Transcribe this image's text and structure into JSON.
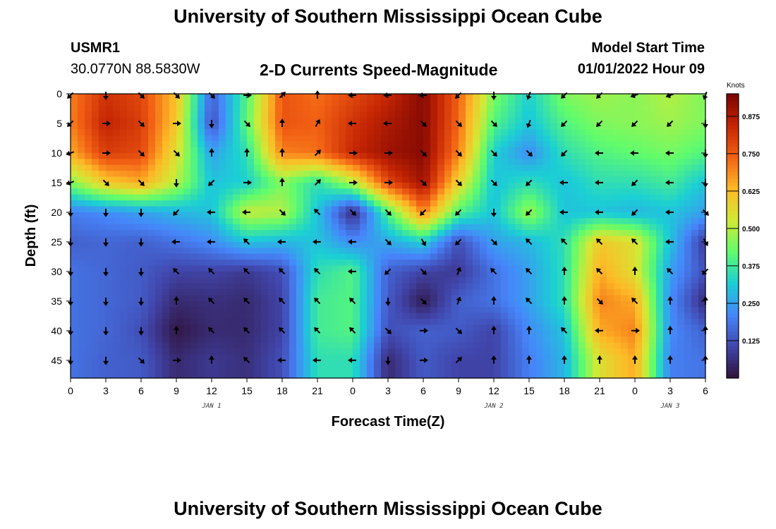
{
  "header": {
    "title": "University of Southern Mississippi Ocean Cube",
    "station_id": "USMR1",
    "coordinates": "30.0770N  88.5830W",
    "chart_title": "2-D Currents Speed-Magnitude",
    "model_start_label": "Model Start Time",
    "model_start_value": "01/01/2022 Hour 09"
  },
  "footer": {
    "title": "University of Southern Mississippi Ocean Cube"
  },
  "chart_data": {
    "type": "heatmap",
    "title": "2-D Currents Speed-Magnitude",
    "xlabel": "Forecast Time(Z)",
    "ylabel": "Depth (ft)",
    "x_tick_labels": [
      "0",
      "3",
      "6",
      "9",
      "12",
      "15",
      "18",
      "21",
      "0",
      "3",
      "6",
      "9",
      "12",
      "15",
      "18",
      "21",
      "0",
      "3",
      "6"
    ],
    "date_labels": [
      {
        "label": "JAN 1",
        "tick_index": 4
      },
      {
        "label": "JAN 2",
        "tick_index": 12
      },
      {
        "label": "JAN 3",
        "tick_index": 17
      }
    ],
    "y_ticks": [
      0,
      5,
      10,
      15,
      20,
      25,
      30,
      35,
      40,
      45
    ],
    "ylim": [
      48,
      0
    ],
    "colorbar": {
      "title": "Knots",
      "range": [
        0,
        0.95
      ],
      "tick_values": [
        0.125,
        0.25,
        0.375,
        0.5,
        0.625,
        0.75,
        0.875
      ],
      "tick_labels": [
        "0.125",
        "0.250",
        "0.375",
        "0.500",
        "0.625",
        "0.750",
        "0.875"
      ],
      "colormap": [
        "#30123b",
        "#4146ac",
        "#4686fb",
        "#1bcfd4",
        "#61fc6c",
        "#d2e935",
        "#feb927",
        "#f26014",
        "#c42503",
        "#7a0403"
      ]
    },
    "speed_grid": {
      "times": [
        0,
        3,
        6,
        9,
        12,
        15,
        18,
        21,
        24,
        27,
        30,
        33,
        36,
        39,
        42,
        45,
        48,
        51,
        54
      ],
      "depths": [
        0,
        5,
        10,
        15,
        20,
        25,
        30,
        35,
        40,
        45
      ],
      "values": [
        [
          0.7,
          0.82,
          0.78,
          0.62,
          0.15,
          0.4,
          0.76,
          0.72,
          0.78,
          0.84,
          0.93,
          0.74,
          0.45,
          0.32,
          0.45,
          0.48,
          0.46,
          0.5,
          0.45
        ],
        [
          0.7,
          0.85,
          0.8,
          0.6,
          0.12,
          0.42,
          0.76,
          0.74,
          0.82,
          0.88,
          0.93,
          0.73,
          0.4,
          0.3,
          0.4,
          0.45,
          0.46,
          0.48,
          0.45
        ],
        [
          0.65,
          0.8,
          0.78,
          0.55,
          0.25,
          0.35,
          0.7,
          0.72,
          0.84,
          0.9,
          0.93,
          0.7,
          0.32,
          0.22,
          0.35,
          0.4,
          0.42,
          0.44,
          0.4
        ],
        [
          0.45,
          0.6,
          0.65,
          0.5,
          0.3,
          0.32,
          0.45,
          0.35,
          0.5,
          0.78,
          0.9,
          0.58,
          0.3,
          0.35,
          0.3,
          0.35,
          0.35,
          0.38,
          0.3
        ],
        [
          0.2,
          0.22,
          0.25,
          0.28,
          0.3,
          0.52,
          0.5,
          0.3,
          0.05,
          0.4,
          0.7,
          0.4,
          0.3,
          0.48,
          0.3,
          0.3,
          0.28,
          0.3,
          0.25
        ],
        [
          0.15,
          0.16,
          0.15,
          0.18,
          0.22,
          0.3,
          0.28,
          0.3,
          0.22,
          0.26,
          0.32,
          0.12,
          0.25,
          0.28,
          0.35,
          0.6,
          0.55,
          0.3,
          0.08
        ],
        [
          0.18,
          0.16,
          0.14,
          0.1,
          0.1,
          0.08,
          0.12,
          0.35,
          0.4,
          0.15,
          0.1,
          0.08,
          0.18,
          0.25,
          0.35,
          0.65,
          0.55,
          0.25,
          0.12
        ],
        [
          0.18,
          0.16,
          0.14,
          0.05,
          0.06,
          0.05,
          0.1,
          0.38,
          0.4,
          0.14,
          0.02,
          0.15,
          0.18,
          0.25,
          0.35,
          0.7,
          0.65,
          0.22,
          0.05
        ],
        [
          0.18,
          0.16,
          0.12,
          0.01,
          0.05,
          0.05,
          0.1,
          0.38,
          0.4,
          0.12,
          0.15,
          0.14,
          0.1,
          0.22,
          0.3,
          0.65,
          0.7,
          0.22,
          0.15
        ],
        [
          0.18,
          0.15,
          0.14,
          0.05,
          0.08,
          0.06,
          0.12,
          0.35,
          0.35,
          0.05,
          0.14,
          0.1,
          0.1,
          0.2,
          0.28,
          0.55,
          0.65,
          0.2,
          0.18
        ]
      ]
    },
    "current_arrows_heading_deg": [
      [
        225,
        180,
        135,
        135,
        135,
        90,
        45,
        0,
        270,
        270,
        270,
        225,
        180,
        200,
        225,
        225,
        250,
        250,
        200
      ],
      [
        225,
        90,
        135,
        90,
        180,
        135,
        0,
        30,
        270,
        270,
        135,
        135,
        135,
        200,
        225,
        225,
        225,
        225,
        180
      ],
      [
        250,
        90,
        135,
        135,
        0,
        0,
        0,
        45,
        90,
        90,
        135,
        135,
        135,
        135,
        225,
        270,
        270,
        270,
        180
      ],
      [
        250,
        135,
        135,
        180,
        225,
        90,
        0,
        45,
        90,
        90,
        135,
        135,
        135,
        225,
        270,
        270,
        225,
        270,
        180
      ],
      [
        180,
        180,
        180,
        225,
        270,
        270,
        135,
        315,
        135,
        135,
        225,
        225,
        180,
        225,
        270,
        270,
        225,
        270,
        135
      ],
      [
        180,
        180,
        180,
        270,
        270,
        315,
        270,
        270,
        270,
        135,
        150,
        225,
        135,
        315,
        315,
        315,
        315,
        270,
        150
      ],
      [
        180,
        180,
        180,
        315,
        315,
        315,
        315,
        315,
        270,
        225,
        135,
        20,
        315,
        315,
        0,
        315,
        0,
        315,
        225
      ],
      [
        180,
        180,
        180,
        0,
        315,
        315,
        315,
        315,
        315,
        180,
        135,
        20,
        0,
        315,
        0,
        135,
        315,
        0,
        0
      ],
      [
        180,
        180,
        180,
        0,
        315,
        315,
        315,
        315,
        315,
        135,
        90,
        135,
        0,
        0,
        315,
        270,
        90,
        0,
        0
      ],
      [
        180,
        180,
        135,
        90,
        0,
        315,
        270,
        270,
        270,
        180,
        90,
        45,
        0,
        0,
        0,
        0,
        0,
        0,
        0
      ]
    ]
  }
}
